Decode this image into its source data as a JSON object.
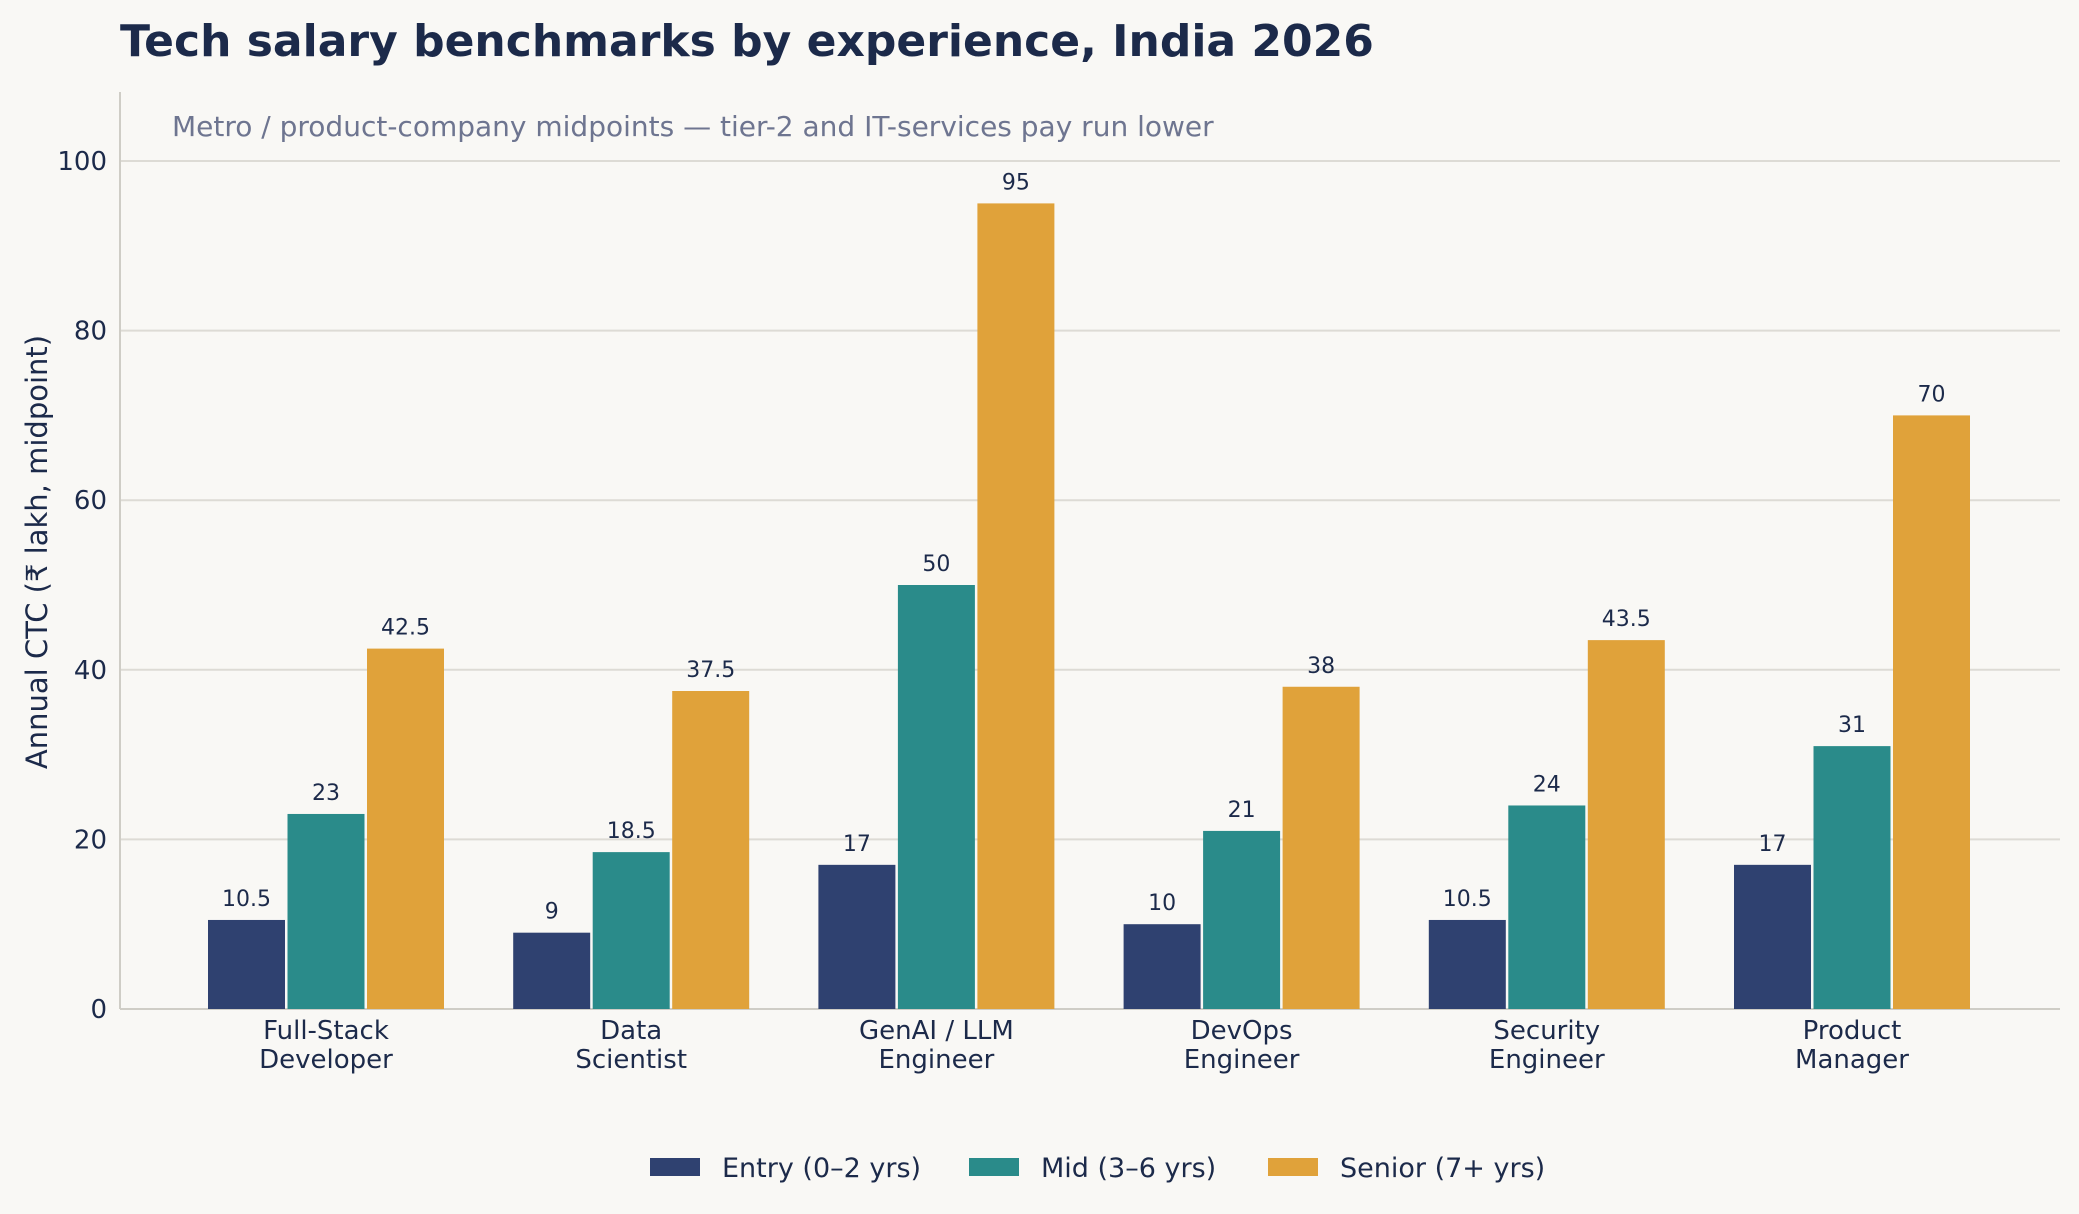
{
  "chart_data": {
    "type": "bar",
    "title": "Tech salary benchmarks by experience, India 2026",
    "subtitle": "Metro / product-company midpoints — tier-2 and IT-services pay run lower",
    "ylabel": "Annual CTC (₹ lakh, midpoint)",
    "xlabel": "",
    "ylim": [
      0,
      108
    ],
    "yticks": [
      "0",
      "20",
      "40",
      "60",
      "80",
      "100"
    ],
    "grid": true,
    "legend_position": "bottom-center",
    "categories": [
      [
        "Full-Stack",
        "Developer"
      ],
      [
        "Data",
        "Scientist"
      ],
      [
        "GenAI / LLM",
        "Engineer"
      ],
      [
        "DevOps",
        "Engineer"
      ],
      [
        "Security",
        "Engineer"
      ],
      [
        "Product",
        "Manager"
      ]
    ],
    "series": [
      {
        "name": "Entry (0–2 yrs)",
        "color": "#2f4170",
        "values": [
          10.5,
          9,
          17,
          10,
          10.5,
          17
        ]
      },
      {
        "name": "Mid (3–6 yrs)",
        "color": "#2a8b8a",
        "values": [
          23,
          18.5,
          50,
          21,
          24,
          31
        ]
      },
      {
        "name": "Senior (7+ yrs)",
        "color": "#e0a23a",
        "values": [
          42.5,
          37.5,
          95,
          38,
          43.5,
          70
        ]
      }
    ]
  }
}
